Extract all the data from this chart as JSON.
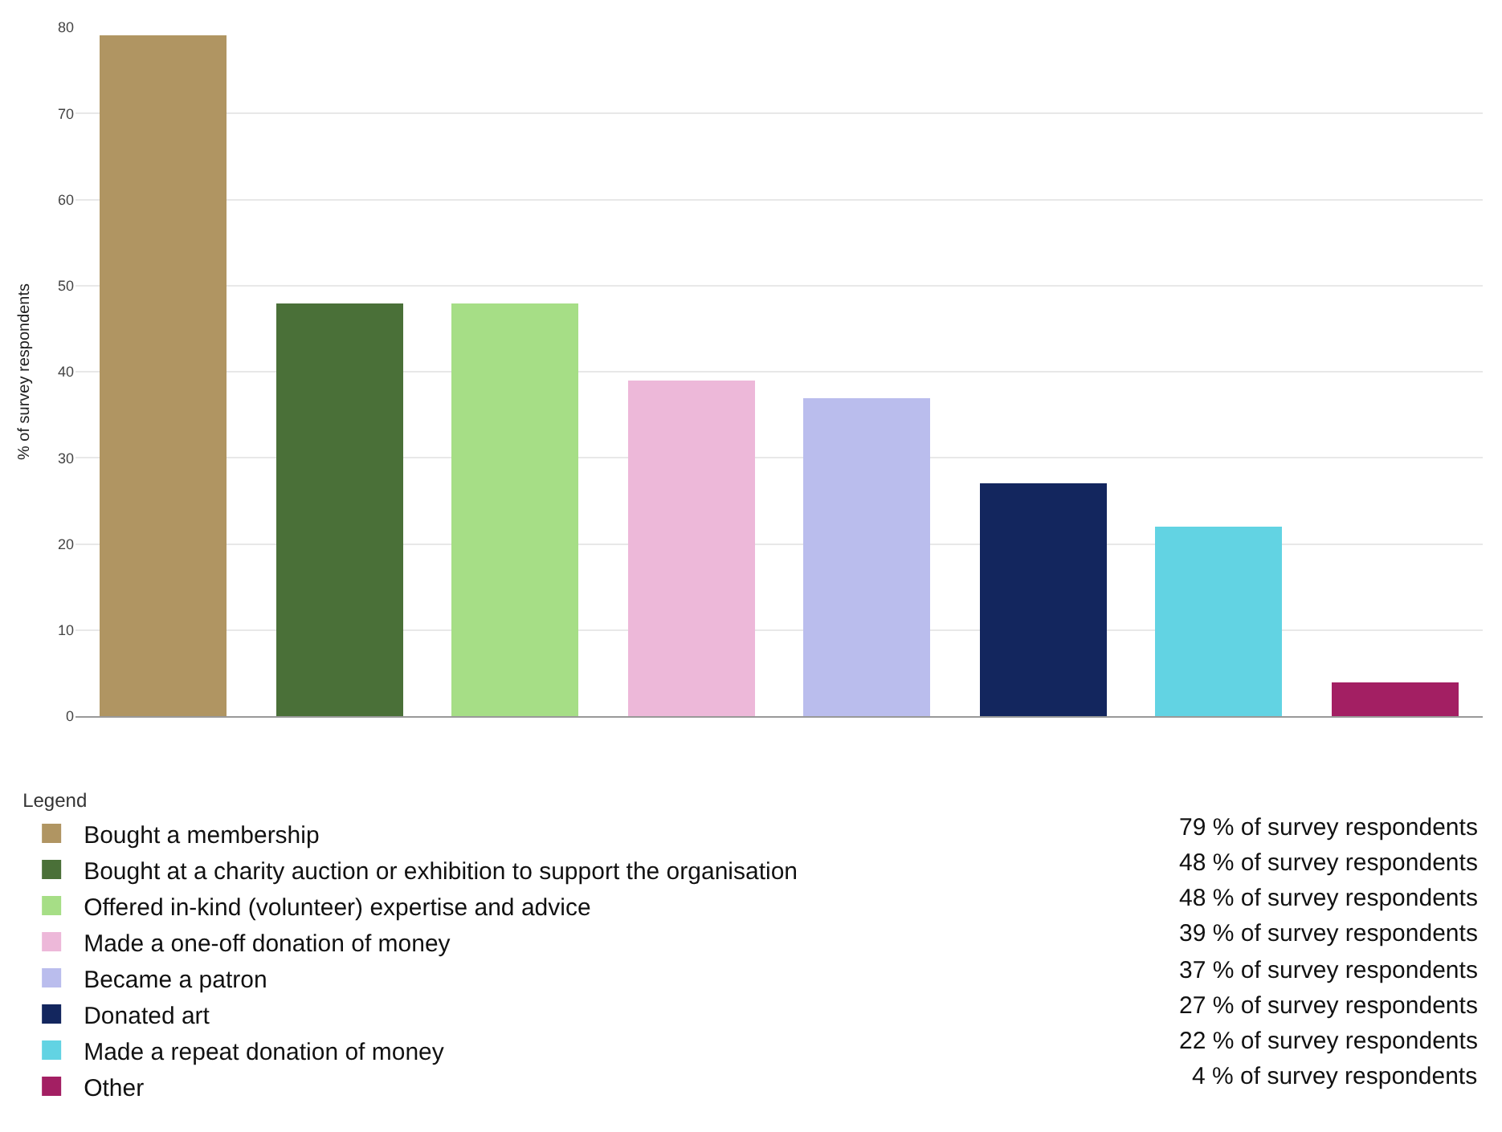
{
  "chart_data": {
    "type": "bar",
    "ylabel": "% of survey respondents",
    "legend_title": "Legend",
    "legend": "bottom",
    "grid": "y",
    "tick_labels": "y",
    "categories": [
      null,
      null,
      null,
      null,
      null,
      null,
      null,
      null
    ],
    "series": [
      {
        "name": "Bought a membership",
        "color": "#b09562",
        "values": [
          79,
          null,
          null,
          null,
          null,
          null,
          null,
          null
        ]
      },
      {
        "name": "Bought at a charity auction or exhibition to support the organisation",
        "color": "#4a7038",
        "values": [
          null,
          48,
          null,
          null,
          null,
          null,
          null,
          null
        ]
      },
      {
        "name": "Offered in-kind (volunteer) expertise and advice",
        "color": "#a6de86",
        "values": [
          null,
          null,
          48,
          null,
          null,
          null,
          null,
          null
        ]
      },
      {
        "name": "Made a one-off donation of money",
        "color": "#edb8d9",
        "values": [
          null,
          null,
          null,
          39,
          null,
          null,
          null,
          null
        ]
      },
      {
        "name": "Became a patron",
        "color": "#babded",
        "values": [
          null,
          null,
          null,
          null,
          37,
          null,
          null,
          null
        ]
      },
      {
        "name": "Donated art",
        "color": "#13265e",
        "values": [
          null,
          null,
          null,
          null,
          null,
          27,
          null,
          null
        ]
      },
      {
        "name": "Made a repeat donation of money",
        "color": "#62d3e3",
        "values": [
          null,
          null,
          null,
          null,
          null,
          null,
          22,
          null
        ]
      },
      {
        "name": "Other",
        "color": "#a31f63",
        "values": [
          null,
          null,
          null,
          null,
          null,
          null,
          null,
          4
        ]
      }
    ],
    "annotations": [
      "79 % of survey respondents",
      "48 % of survey respondents",
      "48 % of survey respondents",
      "39 % of survey respondents",
      "37 % of survey respondents",
      "27 % of survey respondents",
      "22 % of survey respondents",
      "4 % of survey respondents"
    ],
    "ylim": [
      0,
      80
    ],
    "yticks": [
      0,
      10,
      20,
      30,
      40,
      50,
      60,
      70,
      80
    ]
  }
}
